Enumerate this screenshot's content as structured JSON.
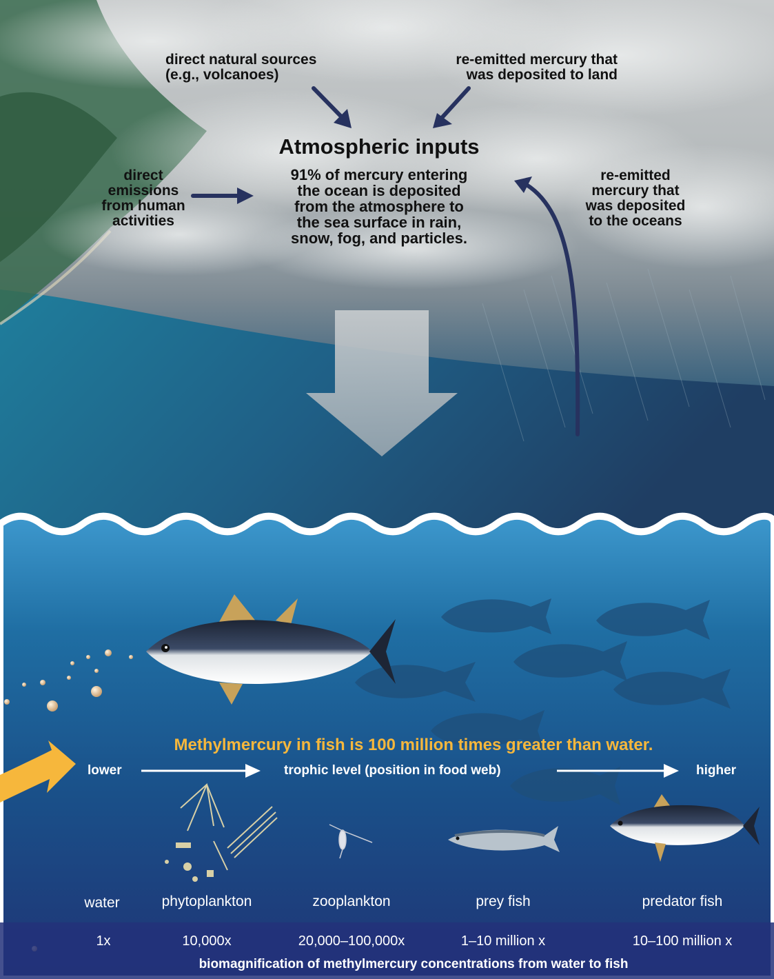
{
  "atmosphere": {
    "natural_sources": "direct natural sources\n(e.g., volcanoes)",
    "reemitted_land": "re-emitted mercury that\nwas deposited to land",
    "title": "Atmospheric inputs",
    "description": "91% of mercury entering\nthe ocean is deposited\nfrom the atmosphere to\nthe sea surface in rain,\nsnow, fog, and particles.",
    "human_emissions": "direct\nemissions\nfrom human\nactivities",
    "reemitted_oceans": "re-emitted\nmercury that\nwas deposited\nto the oceans"
  },
  "ocean": {
    "headline": "Methylmercury in fish is 100 million times greater than water.",
    "axis_lower": "lower",
    "axis_middle": "trophic level (position in food web)",
    "axis_higher": "higher",
    "organisms": [
      {
        "name": "water",
        "factor": "1x"
      },
      {
        "name": "phytoplankton",
        "factor": "10,000x"
      },
      {
        "name": "zooplankton",
        "factor": "20,000–100,000x"
      },
      {
        "name": "prey fish",
        "factor": "1–10 million x"
      },
      {
        "name": "predator fish",
        "factor": "10–100 million x"
      }
    ],
    "footer": "biomagnification of methylmercury concentrations from water to fish"
  },
  "colors": {
    "arrow_navy": "#27325f",
    "headline_gold": "#f6b73c",
    "ocean_top": "#3d98cd",
    "ocean_bottom": "#1f3475"
  }
}
